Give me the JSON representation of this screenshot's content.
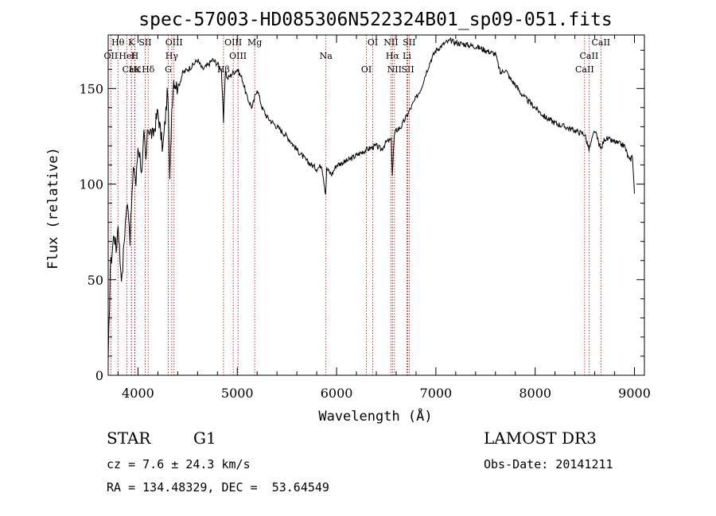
{
  "chart_data": {
    "type": "line",
    "title": "spec-57003-HD085306N522324B01_sp09-051.fits",
    "xlabel": "Wavelength (Å)",
    "ylabel": "Flux (relative)",
    "xlim": [
      3700,
      9100
    ],
    "ylim": [
      0,
      178
    ],
    "xticks": [
      4000,
      5000,
      6000,
      7000,
      8000,
      9000
    ],
    "yticks": [
      0,
      50,
      100,
      150
    ],
    "grid": false,
    "series": [
      {
        "name": "spectrum",
        "color": "#000000",
        "x": [
          3700,
          3720,
          3740,
          3760,
          3780,
          3800,
          3820,
          3840,
          3860,
          3880,
          3900,
          3920,
          3940,
          3960,
          3980,
          4000,
          4020,
          4040,
          4060,
          4080,
          4100,
          4150,
          4200,
          4250,
          4300,
          4320,
          4340,
          4360,
          4400,
          4450,
          4500,
          4550,
          4600,
          4650,
          4700,
          4750,
          4800,
          4840,
          4861,
          4880,
          4900,
          4950,
          5000,
          5050,
          5100,
          5150,
          5200,
          5250,
          5300,
          5400,
          5500,
          5600,
          5700,
          5800,
          5850,
          5890,
          5900,
          5950,
          6000,
          6100,
          6200,
          6300,
          6400,
          6450,
          6500,
          6550,
          6562,
          6580,
          6600,
          6650,
          6700,
          6750,
          6800,
          6850,
          6900,
          6950,
          7000,
          7050,
          7100,
          7150,
          7200,
          7300,
          7400,
          7500,
          7600,
          7650,
          7700,
          7750,
          7800,
          7850,
          7900,
          8000,
          8100,
          8200,
          8300,
          8400,
          8500,
          8542,
          8600,
          8662,
          8700,
          8800,
          8900,
          8950,
          8980,
          9000
        ],
        "values": [
          5,
          55,
          65,
          75,
          65,
          80,
          60,
          50,
          70,
          85,
          90,
          72,
          95,
          110,
          100,
          120,
          115,
          105,
          125,
          112,
          130,
          125,
          138,
          118,
          150,
          100,
          140,
          155,
          150,
          158,
          160,
          162,
          165,
          160,
          162,
          165,
          163,
          160,
          132,
          160,
          155,
          158,
          160,
          155,
          145,
          140,
          150,
          140,
          135,
          130,
          125,
          118,
          112,
          108,
          110,
          95,
          108,
          105,
          110,
          112,
          115,
          118,
          120,
          118,
          122,
          123,
          105,
          125,
          128,
          130,
          135,
          140,
          145,
          150,
          158,
          165,
          170,
          172,
          174,
          175,
          174,
          173,
          172,
          170,
          168,
          158,
          160,
          155,
          152,
          148,
          145,
          140,
          135,
          132,
          130,
          128,
          126,
          118,
          128,
          118,
          124,
          122,
          120,
          112,
          115,
          95
        ]
      }
    ],
    "lines": [
      {
        "label": "Hθ",
        "x": 3798
      },
      {
        "label": "OII",
        "x": 3727
      },
      {
        "label": "CaK",
        "x": 3934
      },
      {
        "label": "K",
        "x": 3934
      },
      {
        "label": "HeI",
        "x": 3889
      },
      {
        "label": "Hε",
        "x": 3970
      },
      {
        "label": "SII",
        "x": 4072
      },
      {
        "label": "H",
        "x": 3968
      },
      {
        "label": "Hδ",
        "x": 4102
      },
      {
        "label": "OIII",
        "x": 4363
      },
      {
        "label": "Hγ",
        "x": 4340
      },
      {
        "label": "G",
        "x": 4305
      },
      {
        "label": "OIII",
        "x": 4959
      },
      {
        "label": "OIII",
        "x": 5007
      },
      {
        "label": "Hβ",
        "x": 4861
      },
      {
        "label": "Mg",
        "x": 5175
      },
      {
        "label": "Na",
        "x": 5893
      },
      {
        "label": "OI",
        "x": 6300
      },
      {
        "label": "OI",
        "x": 6364
      },
      {
        "label": "Hα",
        "x": 6563
      },
      {
        "label": "SII",
        "x": 6717
      },
      {
        "label": "NII",
        "x": 6548
      },
      {
        "label": "Li",
        "x": 6708
      },
      {
        "label": "NII",
        "x": 6583
      },
      {
        "label": "SII",
        "x": 6731
      },
      {
        "label": "CaII",
        "x": 8542
      },
      {
        "label": "CaII",
        "x": 8498
      },
      {
        "label": "CaII",
        "x": 8662
      }
    ]
  },
  "info": {
    "type_label": "STAR",
    "subclass": "G1",
    "survey": "LAMOST DR3",
    "redshift": "cz = 7.6 ± 24.3 km/s",
    "obs_date": "Obs-Date: 20141211",
    "coords": "RA = 134.48329, DEC =  53.64549"
  }
}
